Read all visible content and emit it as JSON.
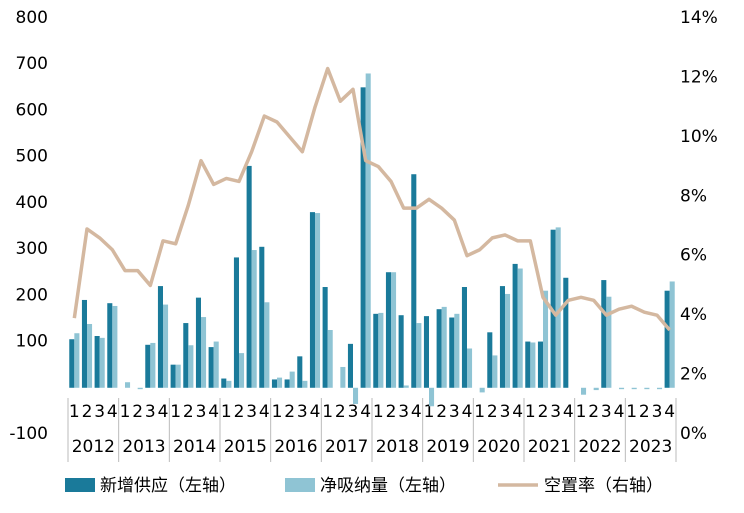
{
  "chart_data": {
    "type": "bar-line",
    "categories": [
      "1",
      "2",
      "3",
      "4",
      "1",
      "2",
      "3",
      "4",
      "1",
      "2",
      "3",
      "4",
      "1",
      "2",
      "3",
      "4",
      "1",
      "2",
      "3",
      "4",
      "1",
      "2",
      "3",
      "4",
      "1",
      "2",
      "3",
      "4",
      "1",
      "2",
      "3",
      "4",
      "1",
      "2",
      "3",
      "4",
      "1",
      "2",
      "3",
      "4",
      "1",
      "2",
      "3",
      "4",
      "1",
      "2",
      "3",
      "4"
    ],
    "years": [
      "2012",
      "2013",
      "2014",
      "2015",
      "2016",
      "2017",
      "2018",
      "2019",
      "2020",
      "2021",
      "2022",
      "2023"
    ],
    "series": [
      {
        "name": "新增供应（左轴）",
        "type": "bar",
        "color": "#1a7a9a",
        "values": [
          105,
          190,
          112,
          183,
          0,
          0,
          93,
          220,
          50,
          140,
          195,
          88,
          20,
          282,
          480,
          305,
          18,
          18,
          68,
          380,
          218,
          0,
          95,
          650,
          160,
          250,
          157,
          462,
          155,
          170,
          152,
          218,
          0,
          120,
          220,
          268,
          100,
          100,
          342,
          238,
          0,
          0,
          233,
          0,
          0,
          0,
          0,
          210
        ]
      },
      {
        "name": "净吸纳量（左轴）",
        "type": "bar",
        "color": "#8fc4d4",
        "values": [
          118,
          138,
          108,
          177,
          12,
          -3,
          97,
          180,
          50,
          92,
          153,
          100,
          15,
          75,
          298,
          185,
          22,
          35,
          15,
          378,
          125,
          45,
          -35,
          680,
          162,
          250,
          5,
          140,
          -40,
          175,
          160,
          85,
          -10,
          70,
          203,
          258,
          98,
          210,
          347,
          0,
          -15,
          -5,
          197,
          -3,
          -3,
          -3,
          -3,
          230
        ]
      },
      {
        "name": "空置率（右轴）",
        "type": "line",
        "axis": "y2",
        "color": "#d4b8a0",
        "values": [
          3.9,
          6.9,
          6.6,
          6.2,
          5.5,
          5.5,
          5.0,
          6.5,
          6.4,
          7.7,
          9.2,
          8.4,
          8.6,
          8.5,
          9.5,
          10.7,
          10.5,
          10.0,
          9.5,
          11.0,
          12.3,
          11.2,
          11.6,
          9.2,
          9.0,
          8.5,
          7.6,
          7.6,
          7.9,
          7.6,
          7.2,
          6.0,
          6.2,
          6.6,
          6.7,
          6.5,
          6.5,
          4.6,
          4.0,
          4.5,
          4.6,
          4.5,
          4.0,
          4.2,
          4.3,
          4.1,
          4.0,
          3.5
        ]
      }
    ],
    "ylim": [
      -100,
      800
    ],
    "yticks": [
      -100,
      100,
      200,
      300,
      400,
      500,
      600,
      700,
      800
    ],
    "y2lim": [
      0,
      14
    ],
    "y2ticks": [
      {
        "value": 0,
        "label": "0%"
      },
      {
        "value": 2,
        "label": "2%"
      },
      {
        "value": 4,
        "label": "4%"
      },
      {
        "value": 6,
        "label": "6%"
      },
      {
        "value": 8,
        "label": "8%"
      },
      {
        "value": 10,
        "label": "10%"
      },
      {
        "value": 12,
        "label": "12%"
      },
      {
        "value": 14,
        "label": "14%"
      }
    ]
  }
}
